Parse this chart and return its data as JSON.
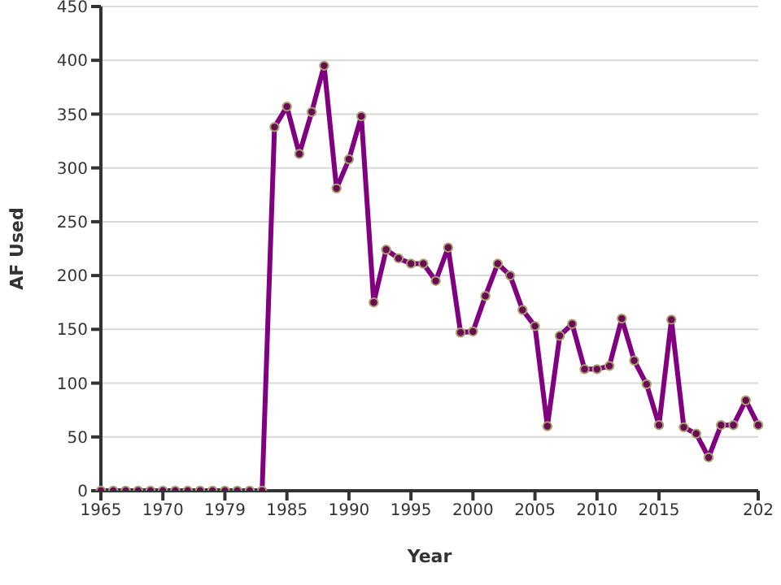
{
  "chart_data": {
    "type": "line",
    "xlabel": "Year",
    "ylabel": "AF Used",
    "categories": [
      "1965",
      null,
      null,
      null,
      null,
      "1970",
      null,
      null,
      null,
      null,
      "1979",
      null,
      null,
      null,
      null,
      "1985",
      null,
      null,
      null,
      null,
      "1990",
      null,
      null,
      null,
      null,
      "1995",
      null,
      null,
      null,
      null,
      "2000",
      null,
      null,
      null,
      null,
      "2005",
      null,
      null,
      null,
      null,
      "2010",
      null,
      null,
      null,
      null,
      "2015",
      null,
      null,
      null,
      null,
      null,
      null,
      null,
      "202"
    ],
    "series": [
      {
        "color": "#800080",
        "values": [
          0,
          0,
          0,
          0,
          0,
          0,
          0,
          0,
          0,
          0,
          0,
          0,
          0,
          0,
          338,
          357,
          313,
          352,
          395,
          281,
          308,
          348,
          175,
          224,
          216,
          211,
          211,
          195,
          226,
          147,
          148,
          181,
          211,
          200,
          168,
          153,
          60,
          144,
          155,
          113,
          113,
          116,
          160,
          121,
          99,
          61,
          159,
          59,
          53,
          31,
          61,
          61,
          84,
          61
        ]
      }
    ],
    "ylim": [
      0,
      450
    ],
    "yticks": [
      0,
      50,
      100,
      150,
      200,
      250,
      300,
      350,
      400,
      450
    ],
    "grid": "y",
    "marker": "circle",
    "line_style": "solid",
    "legend": false
  }
}
